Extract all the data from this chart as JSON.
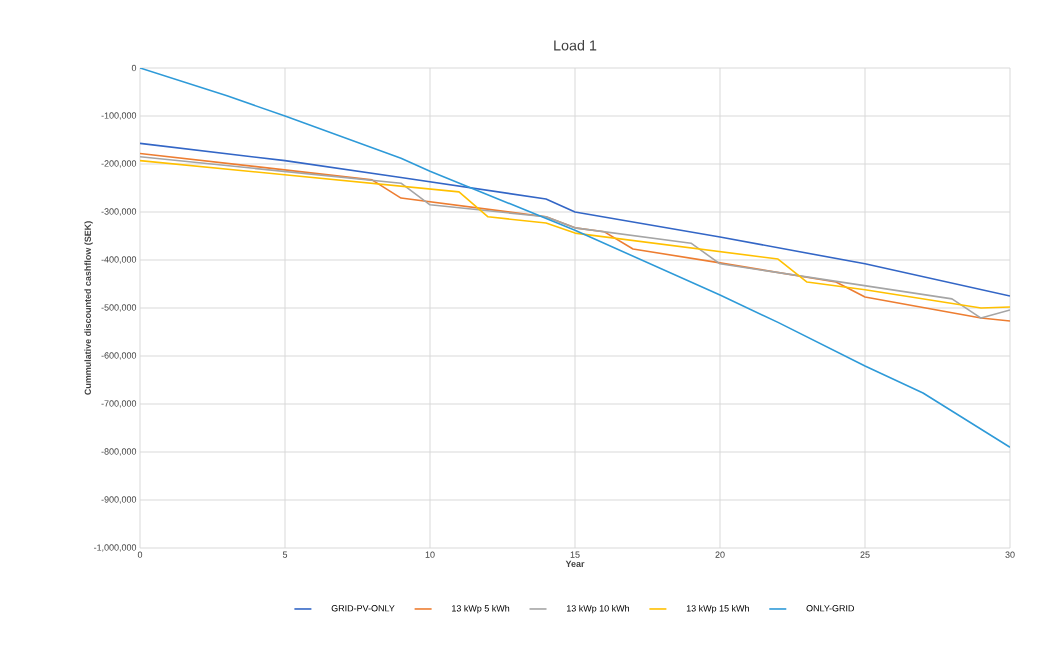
{
  "chart_data": {
    "type": "line",
    "title": "Load 1",
    "xlabel": "Year",
    "ylabel": "Cummulative discounted cashflow (SEK)",
    "xlim": [
      0,
      30
    ],
    "xticks": [
      0,
      5,
      10,
      15,
      20,
      25,
      30
    ],
    "ylim": [
      -1000000,
      0
    ],
    "yticks": [
      {
        "value": -1000000,
        "label": "-1,000,000"
      },
      {
        "value": -900000,
        "label": "-900,000"
      },
      {
        "value": -800000,
        "label": "-800,000"
      },
      {
        "value": -700000,
        "label": "-700,000"
      },
      {
        "value": -600000,
        "label": "-600,000"
      },
      {
        "value": -500000,
        "label": "-500,000"
      },
      {
        "value": -400000,
        "label": "-400,000"
      },
      {
        "value": -300000,
        "label": "-300,000"
      },
      {
        "value": -200000,
        "label": "-200,000"
      },
      {
        "value": -100000,
        "label": "-100,000"
      },
      0
    ],
    "grid": true,
    "legend": "bottom",
    "marker": "none",
    "line_style": "solid",
    "series": [
      {
        "name": "GRID-PV-ONLY",
        "color": "#3366c6",
        "x": [
          0,
          5,
          9,
          14,
          15,
          20,
          25,
          30
        ],
        "values": [
          -157000,
          -193000,
          -228000,
          -273000,
          -300000,
          -352000,
          -408000,
          -475000
        ]
      },
      {
        "name": "13 kWp 5 kWh",
        "color": "#ed7d31",
        "x": [
          0,
          8,
          9,
          14,
          15,
          16,
          17,
          20,
          24,
          25,
          29,
          30
        ],
        "values": [
          -178000,
          -233000,
          -271000,
          -310000,
          -333000,
          -341000,
          -377000,
          -406000,
          -446000,
          -477000,
          -521000,
          -527000
        ]
      },
      {
        "name": "13 kWp 10 kWh",
        "color": "#a5a5a5",
        "x": [
          0,
          9,
          10,
          14,
          15,
          19,
          20,
          28,
          29,
          30
        ],
        "values": [
          -185000,
          -240000,
          -285000,
          -310000,
          -333000,
          -365000,
          -408000,
          -481000,
          -521000,
          -504000
        ]
      },
      {
        "name": "13 kWp 15 kWh",
        "color": "#ffc000",
        "x": [
          0,
          11,
          12,
          14,
          15,
          22,
          23,
          25,
          29,
          30
        ],
        "values": [
          -193000,
          -258000,
          -310000,
          -323000,
          -344000,
          -398000,
          -446000,
          -462000,
          -500000,
          -498000
        ]
      },
      {
        "name": "ONLY-GRID",
        "color": "#2e9ad8",
        "x": [
          0,
          3,
          5,
          9,
          10,
          15,
          20,
          22,
          25,
          27,
          30
        ],
        "values": [
          0,
          -58000,
          -100000,
          -188000,
          -215000,
          -338000,
          -473000,
          -530000,
          -621000,
          -677000,
          -790000
        ]
      }
    ]
  }
}
